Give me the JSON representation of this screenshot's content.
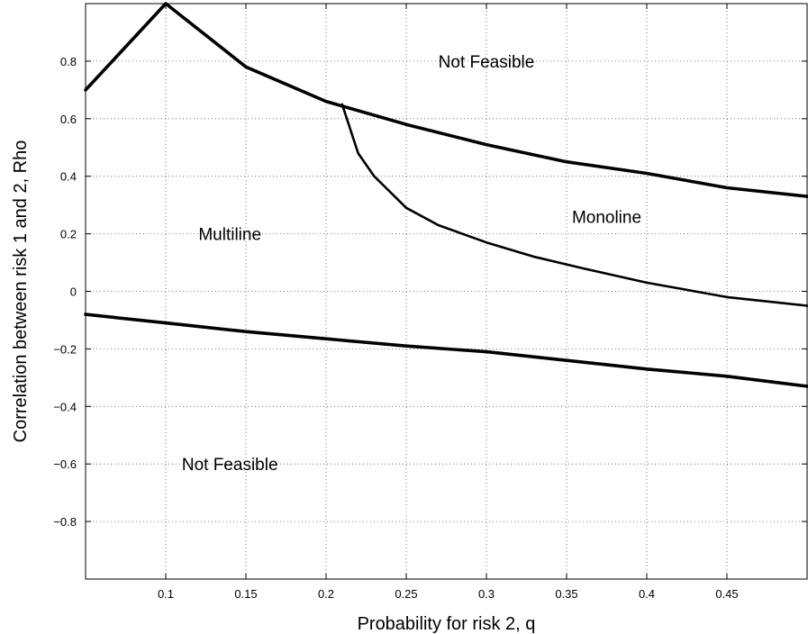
{
  "chart_data": {
    "type": "line",
    "xlabel": "Probability for risk 2, q",
    "ylabel": "Correlation between risk 1 and 2, Rho",
    "xlim": [
      0.05,
      0.5
    ],
    "ylim": [
      -1,
      1
    ],
    "xticks": [
      0.1,
      0.15,
      0.2,
      0.25,
      0.3,
      0.35,
      0.4,
      0.45
    ],
    "yticks": [
      -0.8,
      -0.6,
      -0.4,
      -0.2,
      0,
      0.2,
      0.4,
      0.6,
      0.8
    ],
    "xtick_labels": [
      "0.1",
      "0.15",
      "0.2",
      "0.25",
      "0.3",
      "0.35",
      "0.4",
      "0.45"
    ],
    "ytick_labels": [
      "−0.8",
      "−0.6",
      "−0.4",
      "−0.2",
      "0",
      "0.2",
      "0.4",
      "0.6",
      "0.8"
    ],
    "grid": true,
    "line_color": "#000000",
    "series": [
      {
        "x": [
          0.05,
          0.1,
          0.15,
          0.2,
          0.25,
          0.3,
          0.35,
          0.4,
          0.45,
          0.5
        ],
        "y": [
          0.7,
          1.0,
          0.78,
          0.66,
          0.58,
          0.51,
          0.45,
          0.41,
          0.36,
          0.33
        ]
      },
      {
        "x": [
          0.21,
          0.22,
          0.23,
          0.25,
          0.27,
          0.3,
          0.33,
          0.36,
          0.4,
          0.45,
          0.5
        ],
        "y": [
          0.65,
          0.48,
          0.4,
          0.29,
          0.23,
          0.17,
          0.12,
          0.08,
          0.03,
          -0.02,
          -0.05
        ]
      },
      {
        "x": [
          0.05,
          0.1,
          0.15,
          0.2,
          0.25,
          0.3,
          0.35,
          0.4,
          0.45,
          0.5
        ],
        "y": [
          -0.08,
          -0.11,
          -0.14,
          -0.165,
          -0.19,
          -0.21,
          -0.24,
          -0.27,
          -0.295,
          -0.33
        ]
      }
    ],
    "annotations": [
      {
        "text": "Not Feasible",
        "x": 0.3,
        "y": 0.8
      },
      {
        "text": "Monoline",
        "x": 0.375,
        "y": 0.26
      },
      {
        "text": "Multiline",
        "x": 0.14,
        "y": 0.2
      },
      {
        "text": "Not Feasible",
        "x": 0.14,
        "y": -0.6
      }
    ]
  }
}
